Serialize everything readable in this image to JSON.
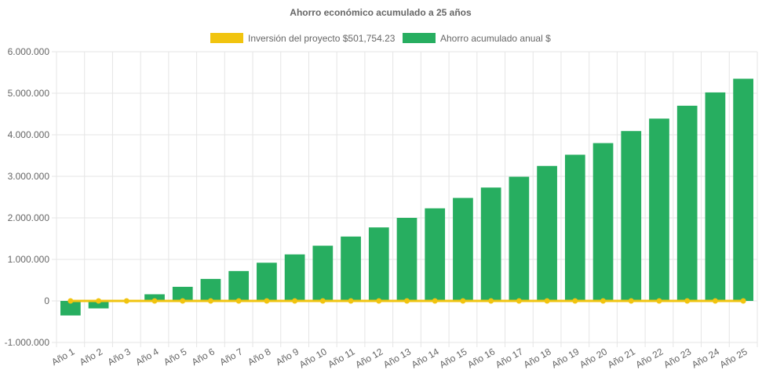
{
  "chart_data": {
    "type": "bar",
    "title": "Ahorro económico acumulado a 25 años",
    "categories": [
      "Año 1",
      "Año 2",
      "Año 3",
      "Año 4",
      "Año 5",
      "Año 6",
      "Año 7",
      "Año 8",
      "Año 9",
      "Año 10",
      "Año 11",
      "Año 12",
      "Año 13",
      "Año 14",
      "Año 15",
      "Año 16",
      "Año 17",
      "Año 18",
      "Año 19",
      "Año 20",
      "Año 21",
      "Año 22",
      "Año 23",
      "Año 24",
      "Año 25"
    ],
    "series": [
      {
        "name": "Inversión del proyecto $501,754.23",
        "type": "line",
        "color": "#f1c40f",
        "values": [
          0,
          0,
          0,
          0,
          0,
          0,
          0,
          0,
          0,
          0,
          0,
          0,
          0,
          0,
          0,
          0,
          0,
          0,
          0,
          0,
          0,
          0,
          0,
          0,
          0
        ]
      },
      {
        "name": "Ahorro acumulado anual $",
        "type": "bar",
        "color": "#27ae60",
        "values": [
          -350000,
          -180000,
          0,
          160000,
          340000,
          530000,
          720000,
          920000,
          1120000,
          1330000,
          1550000,
          1770000,
          2000000,
          2230000,
          2480000,
          2730000,
          2990000,
          3250000,
          3520000,
          3800000,
          4090000,
          4390000,
          4700000,
          5020000,
          5350000
        ]
      }
    ],
    "ylim": [
      -1000000,
      6000000
    ],
    "y_ticks": [
      -1000000,
      0,
      1000000,
      2000000,
      3000000,
      4000000,
      5000000,
      6000000
    ],
    "y_tick_labels": [
      "-1.000.000",
      "0",
      "1.000.000",
      "2.000.000",
      "3.000.000",
      "4.000.000",
      "5.000.000",
      "6.000.000"
    ],
    "grid": true,
    "legend_position": "top-center"
  }
}
